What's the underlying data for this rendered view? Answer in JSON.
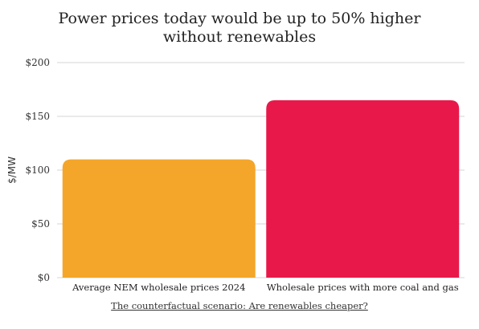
{
  "chart_data": {
    "type": "bar",
    "title": "Power prices today would be up to 50% higher\nwithout renewables",
    "ylabel": "$/MW",
    "xlabel": "",
    "ylim": [
      0,
      200
    ],
    "yticks": [
      0,
      50,
      100,
      150,
      200
    ],
    "ytick_labels": [
      "$0",
      "$50",
      "$100",
      "$150",
      "$200"
    ],
    "categories": [
      "Average NEM wholesale prices 2024",
      "Wholesale prices with more coal and gas"
    ],
    "values": [
      110,
      165
    ],
    "bar_colors": [
      "#f4a62a",
      "#e8194a"
    ],
    "grid": true,
    "legend": "none"
  },
  "caption": "The counterfactual scenario: Are renewables cheaper?"
}
